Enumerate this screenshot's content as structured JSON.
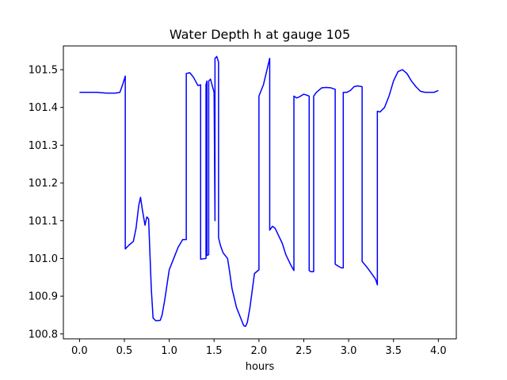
{
  "chart_data": {
    "type": "line",
    "title": "Water Depth h at gauge 105",
    "xlabel": "hours",
    "ylabel": "",
    "xlim": [
      -0.18,
      4.2
    ],
    "ylim": [
      100.787,
      101.563
    ],
    "xticks": [
      0.0,
      0.5,
      1.0,
      1.5,
      2.0,
      2.5,
      3.0,
      3.5,
      4.0
    ],
    "xtick_labels": [
      "0.0",
      "0.5",
      "1.0",
      "1.5",
      "2.0",
      "2.5",
      "3.0",
      "3.5",
      "4.0"
    ],
    "yticks": [
      100.8,
      100.9,
      101.0,
      101.1,
      101.2,
      101.3,
      101.4,
      101.5
    ],
    "ytick_labels": [
      "100.8",
      "100.9",
      "101.0",
      "101.1",
      "101.2",
      "101.3",
      "101.4",
      "101.5"
    ],
    "grid": false,
    "series": [
      {
        "color": "#0000ff",
        "x": [
          0.0,
          0.1,
          0.2,
          0.3,
          0.4,
          0.45,
          0.48,
          0.51,
          0.51,
          0.55,
          0.6,
          0.63,
          0.66,
          0.68,
          0.7,
          0.73,
          0.75,
          0.77,
          0.8,
          0.82,
          0.85,
          0.9,
          0.92,
          0.95,
          1.0,
          1.05,
          1.1,
          1.15,
          1.19,
          1.19,
          1.23,
          1.27,
          1.32,
          1.35,
          1.35,
          1.41,
          1.41,
          1.42,
          1.42,
          1.44,
          1.44,
          1.46,
          1.5,
          1.51,
          1.51,
          1.53,
          1.55,
          1.55,
          1.57,
          1.6,
          1.65,
          1.67,
          1.7,
          1.75,
          1.8,
          1.83,
          1.85,
          1.87,
          1.9,
          1.95,
          2.0,
          2.0,
          2.05,
          2.1,
          2.12,
          2.12,
          2.15,
          2.18,
          2.22,
          2.26,
          2.3,
          2.35,
          2.39,
          2.39,
          2.42,
          2.45,
          2.5,
          2.54,
          2.56,
          2.56,
          2.58,
          2.61,
          2.61,
          2.64,
          2.7,
          2.75,
          2.8,
          2.85,
          2.85,
          2.88,
          2.92,
          2.94,
          2.94,
          2.98,
          3.02,
          3.06,
          3.1,
          3.15,
          3.15,
          3.2,
          3.25,
          3.3,
          3.32,
          3.32,
          3.35,
          3.4,
          3.45,
          3.5,
          3.55,
          3.6,
          3.65,
          3.7,
          3.75,
          3.8,
          3.85,
          3.9,
          3.95,
          4.0
        ],
        "y": [
          101.44,
          101.44,
          101.44,
          101.438,
          101.438,
          101.44,
          101.46,
          101.483,
          101.025,
          101.035,
          101.045,
          101.08,
          101.14,
          101.162,
          101.13,
          101.088,
          101.11,
          101.105,
          100.92,
          100.842,
          100.835,
          100.836,
          100.85,
          100.89,
          100.97,
          101.0,
          101.03,
          101.05,
          101.05,
          101.49,
          101.492,
          101.48,
          101.458,
          101.46,
          100.998,
          101.0,
          101.46,
          101.47,
          101.008,
          101.01,
          101.47,
          101.475,
          101.44,
          101.1,
          101.53,
          101.535,
          101.52,
          101.055,
          101.035,
          101.015,
          101.0,
          100.97,
          100.92,
          100.87,
          100.84,
          100.822,
          100.82,
          100.83,
          100.87,
          100.96,
          100.97,
          101.43,
          101.46,
          101.51,
          101.53,
          101.075,
          101.085,
          101.08,
          101.06,
          101.04,
          101.01,
          100.985,
          100.968,
          101.43,
          101.425,
          101.428,
          101.435,
          101.432,
          101.43,
          100.968,
          100.965,
          100.965,
          101.43,
          101.44,
          101.452,
          101.453,
          101.452,
          101.448,
          100.985,
          100.98,
          100.975,
          100.975,
          101.44,
          101.44,
          101.445,
          101.455,
          101.457,
          101.455,
          100.992,
          100.978,
          100.962,
          100.945,
          100.93,
          101.39,
          101.388,
          101.4,
          101.43,
          101.47,
          101.495,
          101.5,
          101.49,
          101.47,
          101.455,
          101.443,
          101.44,
          101.44,
          101.44,
          101.445
        ]
      }
    ]
  }
}
